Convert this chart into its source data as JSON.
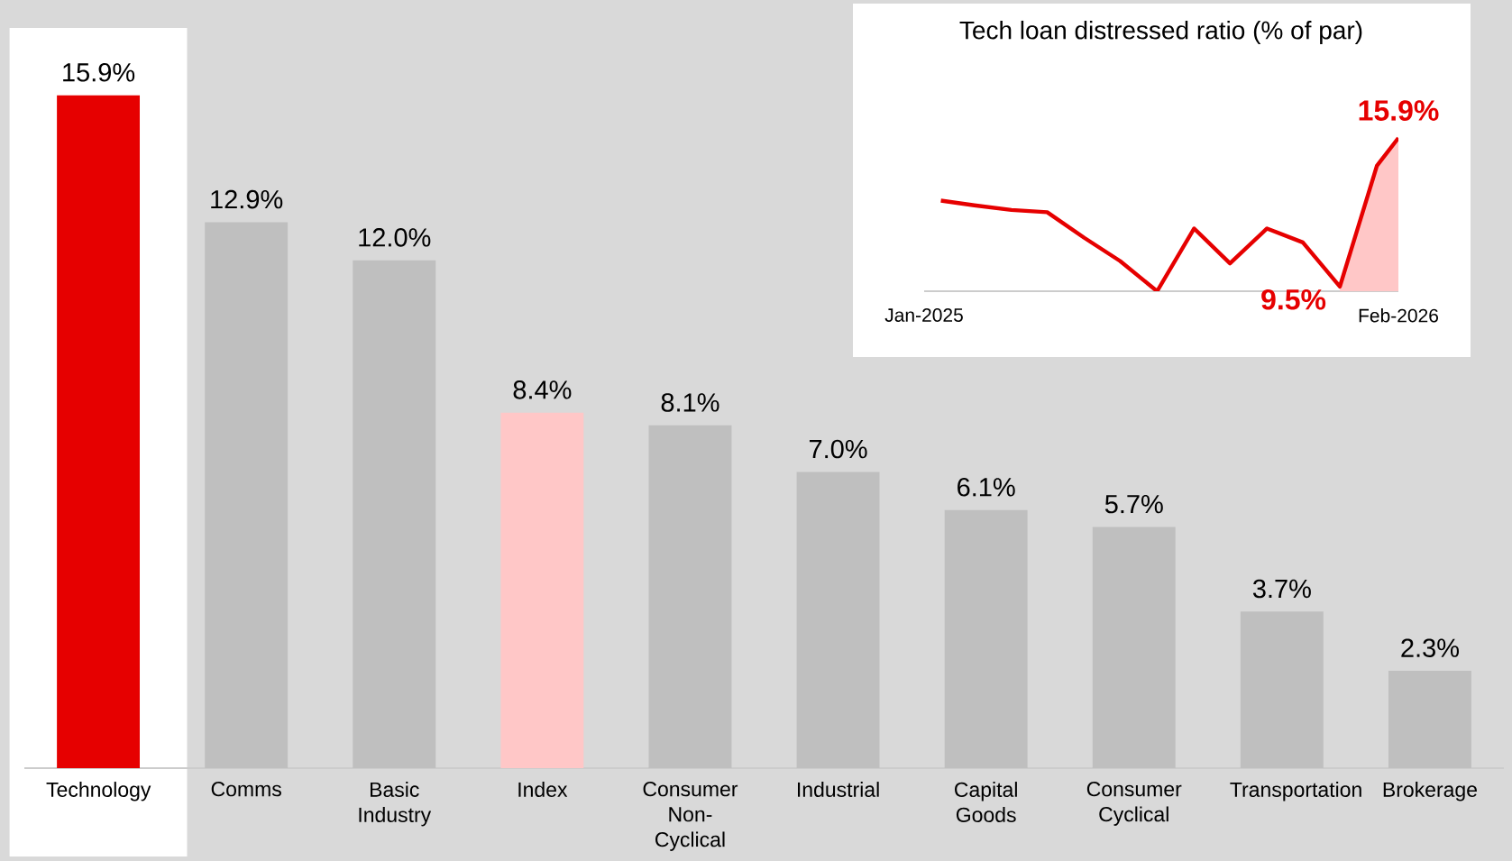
{
  "chart_data": [
    {
      "type": "bar",
      "categories": [
        "Technology",
        "Comms",
        "Basic Industry",
        "Index",
        "Consumer Non-Cyclical",
        "Industrial",
        "Capital Goods",
        "Consumer Cyclical",
        "Transportation",
        "Brokerage"
      ],
      "values": [
        15.9,
        12.9,
        12.0,
        8.4,
        8.1,
        7.0,
        6.1,
        5.7,
        3.7,
        2.3
      ],
      "colors": [
        "#e60000",
        "#bfbfbf",
        "#bfbfbf",
        "#ffc7c7",
        "#bfbfbf",
        "#bfbfbf",
        "#bfbfbf",
        "#bfbfbf",
        "#bfbfbf",
        "#bfbfbf"
      ],
      "value_labels": [
        "15.9%",
        "12.9%",
        "12.0%",
        "8.4%",
        "8.1%",
        "7.0%",
        "6.1%",
        "5.7%",
        "3.7%",
        "2.3%"
      ],
      "tick_labels": "x",
      "bands": [
        {
          "axis": "x",
          "from": "Technology",
          "to": "Technology",
          "color": "#ffffff"
        }
      ]
    },
    {
      "type": "line",
      "title": "Tech loan distressed ratio (% of par)",
      "x": [
        "2025-01-31",
        "2025-02-28",
        "2025-03-31",
        "2025-04-30",
        "2025-05-31",
        "2025-06-30",
        "2025-07-31",
        "2025-08-31",
        "2025-09-30",
        "2025-10-31",
        "2025-11-30",
        "2025-12-31",
        "2026-01-31",
        "2026-02-18"
      ],
      "series": [
        {
          "type": "area",
          "color": "#ffc7c7",
          "values": [
            null,
            null,
            null,
            null,
            null,
            null,
            null,
            null,
            null,
            null,
            null,
            9.5,
            14.7,
            15.9
          ]
        },
        {
          "type": "line",
          "color": "#e60000",
          "values": [
            13.2,
            13.0,
            12.8,
            12.7,
            11.6,
            10.6,
            9.3,
            12.0,
            10.5,
            12.0,
            11.4,
            9.5,
            14.7,
            15.9
          ],
          "value_labels": [
            null,
            null,
            null,
            null,
            null,
            null,
            null,
            null,
            null,
            null,
            null,
            "9.5%",
            null,
            "15.9%"
          ]
        }
      ],
      "xlim": [
        "2025-01-17",
        "2026-02-18"
      ],
      "xticks": [
        {
          "value": "2025-01-17",
          "label": "Jan-2025"
        },
        {
          "value": "2026-02-18",
          "label": "Feb-2026"
        }
      ],
      "tick_labels": "x",
      "marker": "none",
      "line_style": "solid"
    }
  ]
}
